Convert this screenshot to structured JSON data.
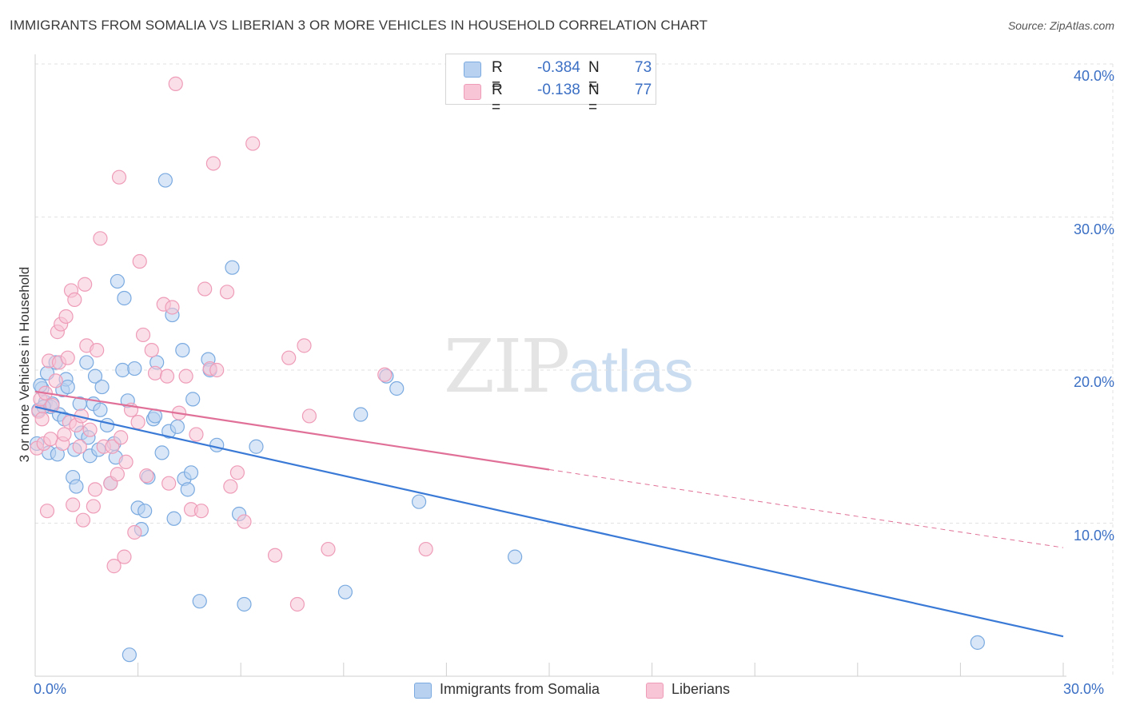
{
  "title": "IMMIGRANTS FROM SOMALIA VS LIBERIAN 3 OR MORE VEHICLES IN HOUSEHOLD CORRELATION CHART",
  "source": "Source: ZipAtlas.com",
  "watermark": {
    "zip": "ZIP",
    "atlas": "atlas"
  },
  "legend": {
    "rows": [
      {
        "r_label": "R =",
        "r_value": "-0.384",
        "n_label": "N =",
        "n_value": "73"
      },
      {
        "r_label": "R =",
        "r_value": "-0.138",
        "n_label": "N =",
        "n_value": "77"
      }
    ]
  },
  "colors": {
    "somalia_fill": "#b8d1f0",
    "somalia_stroke": "#7aaae0",
    "somalia_line": "#3a7ad6",
    "liberian_fill": "#f7c5d5",
    "liberian_stroke": "#ee9cb8",
    "liberian_line": "#e07097",
    "tick_text": "#3b6fc4",
    "grid": "#e2e2e2"
  },
  "chart_data": {
    "type": "scatter",
    "title": "IMMIGRANTS FROM SOMALIA VS LIBERIAN 3 OR MORE VEHICLES IN HOUSEHOLD CORRELATION CHART",
    "xlabel": "",
    "ylabel": "3 or more Vehicles in Household",
    "xlim": [
      0,
      30
    ],
    "ylim": [
      0,
      40
    ],
    "x_tick_labels": [
      "0.0%",
      "30.0%"
    ],
    "y_tick_labels": [
      "10.0%",
      "20.0%",
      "30.0%",
      "40.0%"
    ],
    "y_ticks": [
      10,
      20,
      30,
      40
    ],
    "grid": true,
    "legend_position": "top-center",
    "series": [
      {
        "name": "Immigrants from Somalia",
        "trend": {
          "x0": 0,
          "y0": 17.6,
          "x1": 30,
          "y1": 2.6,
          "dashed_from": null
        },
        "points": [
          [
            0.05,
            15.2
          ],
          [
            0.1,
            17.4
          ],
          [
            0.2,
            18.8
          ],
          [
            0.3,
            17.9
          ],
          [
            0.35,
            19.8
          ],
          [
            0.4,
            14.6
          ],
          [
            0.45,
            17.6
          ],
          [
            0.5,
            17.8
          ],
          [
            0.6,
            20.5
          ],
          [
            0.65,
            14.5
          ],
          [
            0.7,
            17.1
          ],
          [
            0.8,
            18.7
          ],
          [
            0.85,
            16.8
          ],
          [
            0.9,
            19.4
          ],
          [
            0.95,
            18.9
          ],
          [
            1.1,
            13.0
          ],
          [
            1.15,
            14.8
          ],
          [
            1.2,
            12.4
          ],
          [
            1.3,
            17.8
          ],
          [
            1.35,
            15.9
          ],
          [
            1.5,
            20.5
          ],
          [
            1.55,
            15.6
          ],
          [
            1.6,
            14.4
          ],
          [
            1.7,
            17.8
          ],
          [
            1.75,
            19.6
          ],
          [
            1.85,
            14.8
          ],
          [
            1.9,
            17.4
          ],
          [
            1.95,
            18.9
          ],
          [
            2.1,
            16.4
          ],
          [
            2.2,
            12.6
          ],
          [
            2.3,
            15.2
          ],
          [
            2.35,
            14.3
          ],
          [
            2.4,
            25.8
          ],
          [
            2.55,
            20.0
          ],
          [
            2.6,
            24.7
          ],
          [
            2.7,
            18.0
          ],
          [
            2.9,
            20.1
          ],
          [
            3.0,
            11.0
          ],
          [
            3.1,
            9.6
          ],
          [
            3.2,
            10.8
          ],
          [
            3.3,
            13.0
          ],
          [
            3.45,
            16.8
          ],
          [
            3.5,
            17.0
          ],
          [
            3.55,
            20.5
          ],
          [
            3.7,
            14.6
          ],
          [
            3.8,
            32.4
          ],
          [
            3.9,
            16.0
          ],
          [
            4.0,
            23.6
          ],
          [
            4.05,
            10.3
          ],
          [
            4.15,
            16.3
          ],
          [
            4.3,
            21.3
          ],
          [
            4.35,
            12.9
          ],
          [
            4.45,
            12.2
          ],
          [
            4.55,
            13.3
          ],
          [
            4.6,
            18.1
          ],
          [
            4.8,
            4.9
          ],
          [
            5.05,
            20.7
          ],
          [
            5.1,
            20.0
          ],
          [
            5.3,
            15.1
          ],
          [
            5.75,
            26.7
          ],
          [
            5.95,
            10.6
          ],
          [
            6.1,
            4.7
          ],
          [
            6.45,
            15.0
          ],
          [
            9.05,
            5.5
          ],
          [
            9.5,
            17.1
          ],
          [
            10.25,
            19.6
          ],
          [
            10.55,
            18.8
          ],
          [
            11.2,
            11.4
          ],
          [
            14.0,
            7.8
          ],
          [
            27.5,
            2.2
          ],
          [
            2.75,
            1.4
          ],
          [
            0.15,
            19.0
          ],
          [
            0.25,
            17.6
          ]
        ]
      },
      {
        "name": "Liberians",
        "trend": {
          "x0": 0,
          "y0": 18.6,
          "x1": 30,
          "y1": 8.4,
          "dashed_from": 15.0
        },
        "points": [
          [
            0.05,
            14.9
          ],
          [
            0.1,
            17.3
          ],
          [
            0.15,
            18.1
          ],
          [
            0.2,
            16.8
          ],
          [
            0.25,
            15.2
          ],
          [
            0.3,
            18.5
          ],
          [
            0.35,
            10.8
          ],
          [
            0.4,
            20.6
          ],
          [
            0.45,
            15.5
          ],
          [
            0.5,
            17.7
          ],
          [
            0.6,
            19.3
          ],
          [
            0.65,
            22.5
          ],
          [
            0.7,
            20.5
          ],
          [
            0.75,
            23.0
          ],
          [
            0.8,
            15.2
          ],
          [
            0.85,
            15.8
          ],
          [
            0.9,
            23.5
          ],
          [
            0.95,
            20.8
          ],
          [
            1.0,
            16.6
          ],
          [
            1.05,
            25.2
          ],
          [
            1.1,
            11.2
          ],
          [
            1.15,
            24.6
          ],
          [
            1.2,
            16.4
          ],
          [
            1.3,
            15.0
          ],
          [
            1.35,
            17.0
          ],
          [
            1.4,
            10.2
          ],
          [
            1.45,
            25.6
          ],
          [
            1.5,
            21.6
          ],
          [
            1.6,
            16.1
          ],
          [
            1.7,
            11.1
          ],
          [
            1.75,
            12.2
          ],
          [
            1.8,
            21.3
          ],
          [
            1.9,
            28.6
          ],
          [
            2.0,
            15.0
          ],
          [
            2.2,
            12.6
          ],
          [
            2.25,
            15.0
          ],
          [
            2.3,
            7.2
          ],
          [
            2.4,
            13.2
          ],
          [
            2.45,
            32.6
          ],
          [
            2.5,
            15.6
          ],
          [
            2.6,
            7.8
          ],
          [
            2.65,
            14.0
          ],
          [
            2.8,
            17.4
          ],
          [
            2.9,
            9.4
          ],
          [
            3.0,
            16.6
          ],
          [
            3.05,
            27.1
          ],
          [
            3.15,
            22.3
          ],
          [
            3.25,
            13.1
          ],
          [
            3.4,
            21.3
          ],
          [
            3.5,
            19.8
          ],
          [
            3.75,
            24.3
          ],
          [
            3.85,
            19.6
          ],
          [
            3.9,
            12.6
          ],
          [
            4.0,
            24.1
          ],
          [
            4.1,
            38.7
          ],
          [
            4.2,
            17.2
          ],
          [
            4.4,
            19.6
          ],
          [
            4.55,
            10.9
          ],
          [
            4.7,
            15.8
          ],
          [
            4.85,
            10.8
          ],
          [
            4.95,
            25.3
          ],
          [
            5.1,
            20.1
          ],
          [
            5.2,
            33.5
          ],
          [
            5.3,
            20.0
          ],
          [
            5.6,
            25.1
          ],
          [
            5.7,
            12.4
          ],
          [
            5.9,
            13.3
          ],
          [
            6.1,
            10.1
          ],
          [
            6.35,
            34.8
          ],
          [
            7.0,
            7.9
          ],
          [
            7.4,
            20.8
          ],
          [
            7.65,
            4.7
          ],
          [
            7.85,
            21.6
          ],
          [
            8.0,
            17.0
          ],
          [
            8.55,
            8.3
          ],
          [
            10.2,
            19.7
          ],
          [
            11.4,
            8.3
          ]
        ]
      }
    ]
  },
  "bottom_legend": [
    {
      "label": "Immigrants from Somalia"
    },
    {
      "label": "Liberians"
    }
  ]
}
